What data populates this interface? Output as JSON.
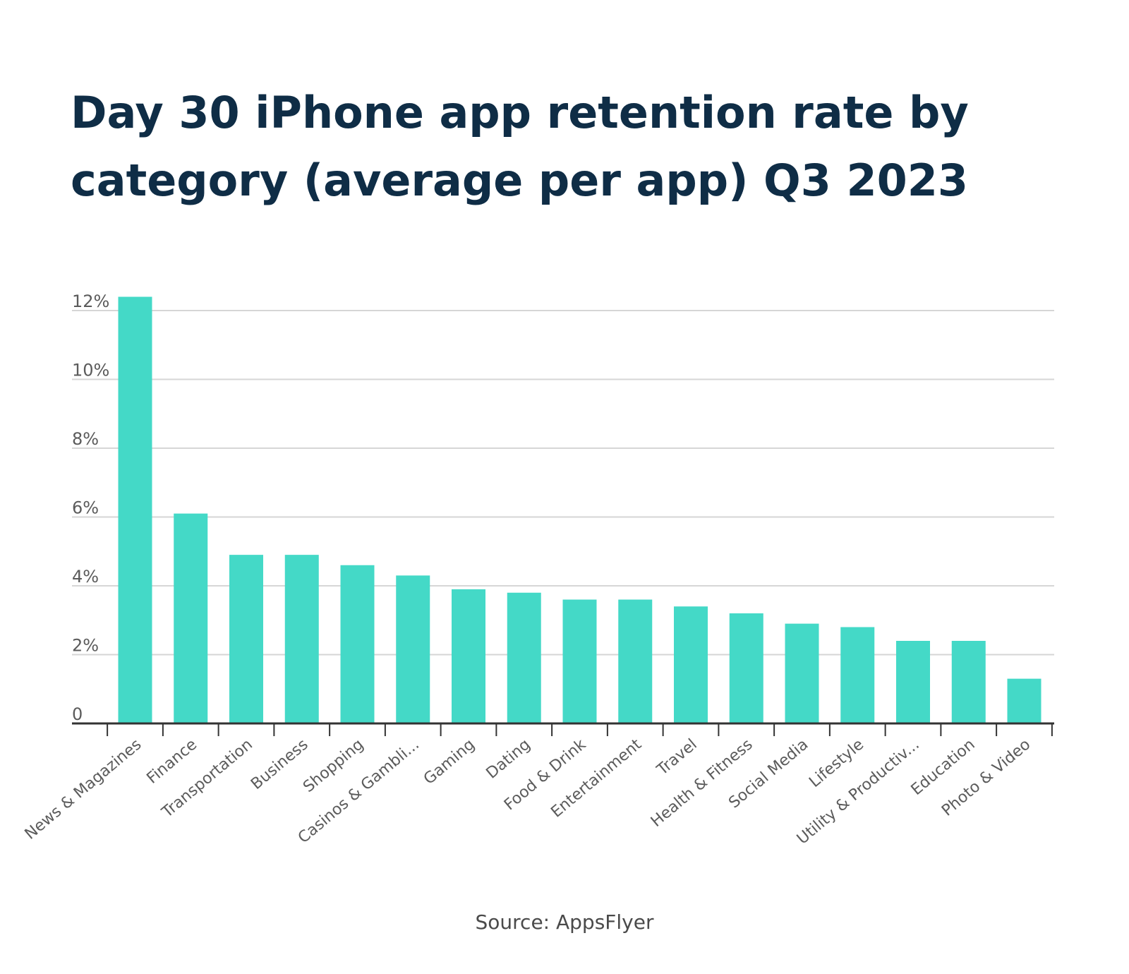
{
  "source": "Source: AppsFlyer",
  "colors": {
    "bar": "#44d9c7",
    "title": "#0f2d46",
    "grid": "#d6d6d6",
    "axis": "#333333",
    "text": "#5b5b5b"
  },
  "chart_data": {
    "type": "bar",
    "title": "Day 30 iPhone app retention rate by category (average per app) Q3 2023",
    "xlabel": "",
    "ylabel": "",
    "ylim": [
      0,
      12
    ],
    "yticks": [
      0,
      2,
      4,
      6,
      8,
      10,
      12
    ],
    "ytick_labels": [
      "0",
      "2%",
      "4%",
      "6%",
      "8%",
      "10%",
      "12%"
    ],
    "grid": true,
    "categories": [
      "News & Magazines",
      "Finance",
      "Transportation",
      "Business",
      "Shopping",
      "Casinos & Gambli...",
      "Gaming",
      "Dating",
      "Food & Drink",
      "Entertainment",
      "Travel",
      "Health & Fitness",
      "Social Media",
      "Lifestyle",
      "Utility & Productiv...",
      "Education",
      "Photo & Video"
    ],
    "values": [
      12.4,
      6.1,
      4.9,
      4.9,
      4.6,
      4.3,
      3.9,
      3.8,
      3.6,
      3.6,
      3.4,
      3.2,
      2.9,
      2.8,
      2.4,
      2.4,
      1.3
    ]
  }
}
